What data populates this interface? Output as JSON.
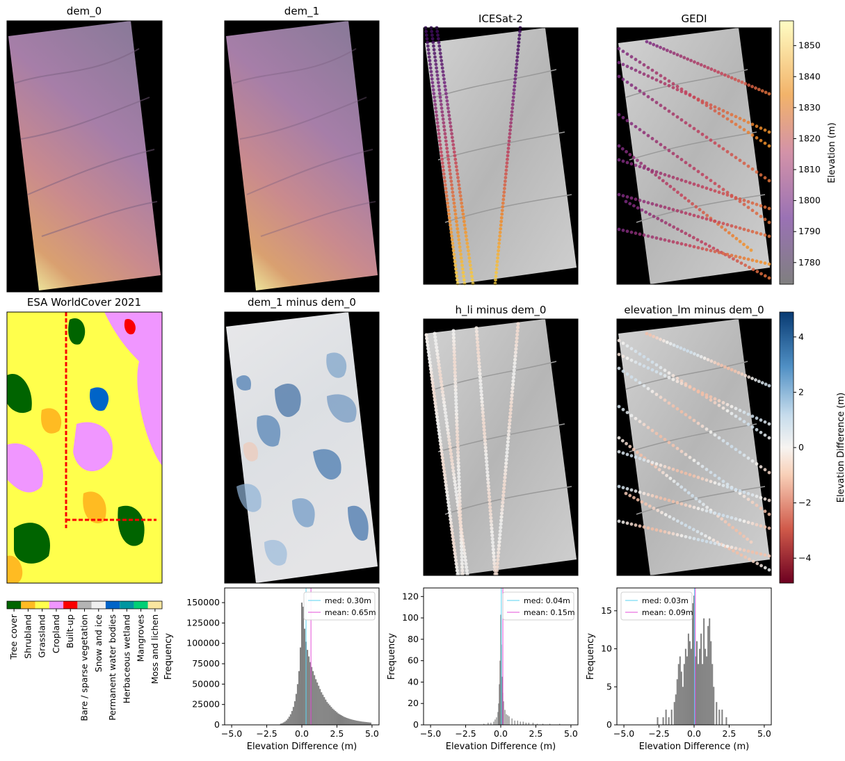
{
  "panels": {
    "dem0_title": "dem_0",
    "dem1_title": "dem_1",
    "icesat_title": "ICESat-2",
    "gedi_title": "GEDI",
    "worldcover_title": "ESA WorldCover 2021",
    "diff1_title": "dem_1 minus dem_0",
    "diff2_title": "h_li minus dem_0",
    "diff3_title": "elevation_lm minus dem_0"
  },
  "colors": {
    "histogram_bar": "#808080",
    "median_line": "#57d2f0",
    "mean_line": "#e34fd8",
    "map_background": "#000000"
  },
  "elevation_colorbar": {
    "label": "Elevation (m)",
    "ticks": [
      1780,
      1790,
      1800,
      1810,
      1820,
      1830,
      1840,
      1850
    ],
    "range": [
      1773,
      1858
    ]
  },
  "difference_colorbar": {
    "label": "Elevation Difference (m)",
    "ticks": [
      -4,
      -2,
      0,
      2,
      4
    ],
    "range": [
      -4.9,
      4.9
    ]
  },
  "landcover_legend": {
    "classes": [
      {
        "name": "Tree cover",
        "color": "#006400"
      },
      {
        "name": "Shrubland",
        "color": "#ffbb22"
      },
      {
        "name": "Grassland",
        "color": "#ffff4c"
      },
      {
        "name": "Cropland",
        "color": "#f096ff"
      },
      {
        "name": "Built-up",
        "color": "#fa0000"
      },
      {
        "name": "Bare / sparse vegetation",
        "color": "#b4b4b4"
      },
      {
        "name": "Snow and ice",
        "color": "#f0f0f0"
      },
      {
        "name": "Permanent water bodies",
        "color": "#0064c8"
      },
      {
        "name": "Herbaceous wetland",
        "color": "#0096a0"
      },
      {
        "name": "Mangroves",
        "color": "#00cf75"
      },
      {
        "name": "Moss and lichen",
        "color": "#fae6a0"
      }
    ]
  },
  "chart_data": [
    {
      "type": "bar",
      "title": "",
      "xlabel": "Elevation Difference (m)",
      "ylabel": "Frequency",
      "xlim": [
        -5.5,
        5.5
      ],
      "ylim": [
        0,
        168000
      ],
      "xticks": [
        -5.0,
        -2.5,
        0.0,
        2.5,
        5.0
      ],
      "yticks": [
        0,
        25000,
        50000,
        75000,
        100000,
        125000,
        150000
      ],
      "series": [
        {
          "name": "med: 0.30m",
          "value": 0.3
        },
        {
          "name": "mean: 0.65m",
          "value": 0.65
        }
      ],
      "bins": {
        "x": [
          -1.5,
          -1.4,
          -1.3,
          -1.2,
          -1.1,
          -1.0,
          -0.9,
          -0.8,
          -0.7,
          -0.6,
          -0.5,
          -0.4,
          -0.3,
          -0.2,
          -0.1,
          0.0,
          0.1,
          0.2,
          0.3,
          0.4,
          0.5,
          0.6,
          0.7,
          0.8,
          0.9,
          1.0,
          1.1,
          1.2,
          1.3,
          1.4,
          1.5,
          1.6,
          1.7,
          1.8,
          1.9,
          2.0,
          2.1,
          2.2,
          2.3,
          2.4,
          2.5,
          2.6,
          2.7,
          2.8,
          2.9,
          3.0,
          3.1,
          3.2,
          3.3,
          3.4,
          3.5,
          3.6,
          3.7,
          3.8,
          3.9,
          4.0,
          4.1,
          4.2,
          4.3,
          4.4,
          4.5,
          4.6,
          4.7,
          4.8,
          4.9
        ],
        "values": [
          1500,
          2000,
          3000,
          4000,
          5500,
          7500,
          10000,
          13000,
          17000,
          22000,
          29000,
          38000,
          50000,
          66000,
          95000,
          150000,
          145000,
          118000,
          102000,
          92000,
          84000,
          77000,
          71000,
          66000,
          61000,
          56000,
          52000,
          48000,
          44000,
          40000,
          37000,
          34000,
          31000,
          28000,
          26000,
          24000,
          22000,
          20000,
          18500,
          17000,
          15500,
          14000,
          13000,
          12000,
          11000,
          10000,
          9300,
          8600,
          8000,
          7400,
          6900,
          6400,
          6000,
          5600,
          5200,
          4900,
          4600,
          4300,
          4000,
          3800,
          3600,
          3400,
          3200,
          3000,
          2800
        ]
      }
    },
    {
      "type": "bar",
      "title": "",
      "xlabel": "Elevation Difference (m)",
      "ylabel": "Frequency",
      "xlim": [
        -5.5,
        5.5
      ],
      "ylim": [
        0,
        128
      ],
      "xticks": [
        -5.0,
        -2.5,
        0.0,
        2.5,
        5.0
      ],
      "yticks": [
        0,
        20,
        40,
        60,
        80,
        100,
        120
      ],
      "series": [
        {
          "name": "med: 0.04m",
          "value": 0.04
        },
        {
          "name": "mean: 0.15m",
          "value": 0.15
        }
      ],
      "bins": {
        "x": [
          -1.2,
          -0.9,
          -0.7,
          -0.5,
          -0.4,
          -0.3,
          -0.2,
          -0.15,
          -0.1,
          -0.05,
          0.0,
          0.05,
          0.1,
          0.15,
          0.2,
          0.3,
          0.4,
          0.5,
          0.6,
          0.8,
          1.0,
          1.2,
          1.4,
          1.6,
          1.8,
          2.0,
          2.3,
          2.6,
          3.0,
          3.5,
          4.2
        ],
        "values": [
          1,
          2,
          2,
          3,
          5,
          7,
          12,
          20,
          38,
          60,
          103,
          75,
          45,
          30,
          22,
          14,
          10,
          9,
          8,
          6,
          4,
          4,
          3,
          3,
          2,
          2,
          2,
          1,
          1,
          1,
          1
        ]
      }
    },
    {
      "type": "bar",
      "title": "",
      "xlabel": "Elevation Difference (m)",
      "ylabel": "Frequency",
      "xlim": [
        -5.5,
        5.5
      ],
      "ylim": [
        0,
        18
      ],
      "xticks": [
        -5.0,
        -2.5,
        0.0,
        2.5,
        5.0
      ],
      "yticks": [
        0,
        5,
        10,
        15
      ],
      "series": [
        {
          "name": "med: 0.03m",
          "value": 0.03
        },
        {
          "name": "mean: 0.09m",
          "value": 0.09
        }
      ],
      "bins": {
        "x": [
          -2.6,
          -2.2,
          -2.0,
          -1.8,
          -1.6,
          -1.4,
          -1.3,
          -1.2,
          -1.1,
          -1.0,
          -0.9,
          -0.8,
          -0.7,
          -0.6,
          -0.5,
          -0.4,
          -0.3,
          -0.2,
          -0.1,
          0.0,
          0.1,
          0.2,
          0.3,
          0.4,
          0.5,
          0.6,
          0.7,
          0.8,
          0.9,
          1.0,
          1.1,
          1.2,
          1.3,
          1.4,
          1.6,
          1.8,
          2.0,
          2.3
        ],
        "values": [
          1,
          1,
          2,
          1,
          2,
          3,
          4,
          6,
          8,
          9,
          7,
          5,
          8,
          10,
          9,
          12,
          11,
          10,
          16,
          17,
          9,
          11,
          8,
          10,
          12,
          8,
          14,
          10,
          9,
          13,
          14,
          11,
          8,
          5,
          3,
          2,
          2,
          1
        ]
      }
    }
  ]
}
